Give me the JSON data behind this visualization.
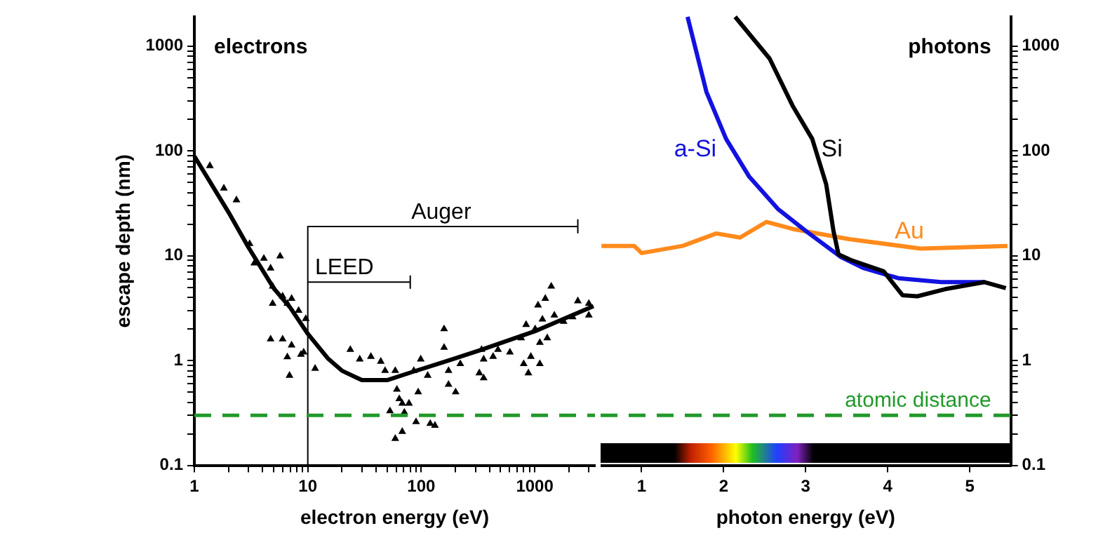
{
  "chart_data": [
    {
      "type": "scatter",
      "xlabel": "electron energy (eV)",
      "ylabel": "escape depth (nm)",
      "log": "xy",
      "grid": false,
      "legend": false,
      "xlim": [
        1,
        3400
      ],
      "ylim": [
        0.1,
        1900
      ],
      "xticks": [
        1,
        {
          "value": 2,
          "label": null
        },
        {
          "value": 3,
          "label": null
        },
        {
          "value": 4,
          "label": null
        },
        {
          "value": 5,
          "label": null
        },
        {
          "value": 6,
          "label": null
        },
        {
          "value": 7,
          "label": null
        },
        {
          "value": 8,
          "label": null
        },
        {
          "value": 9,
          "label": null
        },
        10,
        {
          "value": 20,
          "label": null
        },
        {
          "value": 30,
          "label": null
        },
        {
          "value": 40,
          "label": null
        },
        {
          "value": 50,
          "label": null
        },
        {
          "value": 60,
          "label": null
        },
        {
          "value": 70,
          "label": null
        },
        {
          "value": 80,
          "label": null
        },
        {
          "value": 90,
          "label": null
        },
        100,
        {
          "value": 200,
          "label": null
        },
        {
          "value": 300,
          "label": null
        },
        {
          "value": 400,
          "label": null
        },
        {
          "value": 500,
          "label": null
        },
        {
          "value": 600,
          "label": null
        },
        {
          "value": 700,
          "label": null
        },
        {
          "value": 800,
          "label": null
        },
        {
          "value": 900,
          "label": null
        },
        1000,
        {
          "value": 2000,
          "label": null
        },
        {
          "value": 3000,
          "label": null
        }
      ],
      "yticks": [
        0.1,
        {
          "value": 0.2,
          "label": null
        },
        {
          "value": 0.3,
          "label": null
        },
        {
          "value": 0.4,
          "label": null
        },
        {
          "value": 0.5,
          "label": null
        },
        {
          "value": 0.6,
          "label": null
        },
        {
          "value": 0.7,
          "label": null
        },
        {
          "value": 0.8,
          "label": null
        },
        {
          "value": 0.9,
          "label": null
        },
        1,
        {
          "value": 2,
          "label": null
        },
        {
          "value": 3,
          "label": null
        },
        {
          "value": 4,
          "label": null
        },
        {
          "value": 5,
          "label": null
        },
        {
          "value": 6,
          "label": null
        },
        {
          "value": 7,
          "label": null
        },
        {
          "value": 8,
          "label": null
        },
        {
          "value": 9,
          "label": null
        },
        10,
        {
          "value": 20,
          "label": null
        },
        {
          "value": 30,
          "label": null
        },
        {
          "value": 40,
          "label": null
        },
        {
          "value": 50,
          "label": null
        },
        {
          "value": 60,
          "label": null
        },
        {
          "value": 70,
          "label": null
        },
        {
          "value": 80,
          "label": null
        },
        {
          "value": 90,
          "label": null
        },
        100,
        {
          "value": 200,
          "label": null
        },
        {
          "value": 300,
          "label": null
        },
        {
          "value": 400,
          "label": null
        },
        {
          "value": 500,
          "label": null
        },
        {
          "value": 600,
          "label": null
        },
        {
          "value": 700,
          "label": null
        },
        {
          "value": 800,
          "label": null
        },
        {
          "value": 900,
          "label": null
        },
        1000
      ],
      "annotations": [
        "electrons",
        {
          "text": "Auger",
          "x": 150,
          "y": 19
        },
        {
          "text": "LEED",
          "x": 21,
          "y": 5.6
        }
      ],
      "ref_lines": [
        {
          "axis": "y",
          "value": 0.3,
          "color": "#22992a",
          "line_style": "dashed"
        }
      ],
      "series": [
        {
          "type": "scatter",
          "marker": "triangle",
          "color": "#000000",
          "x": [
            1.37,
            1.82,
            2.35,
            3.07,
            3.38,
            4.1,
            5.7,
            4.7,
            4.9,
            6.0,
            7.2,
            4.9,
            4.7,
            6.0,
            6.6,
            7.2,
            6.9,
            8.7,
            6.6,
            8.3,
            9.6,
            9.2,
            11.6,
            23.7,
            28.7,
            36,
            44,
            48,
            53,
            59,
            61,
            64,
            68,
            59,
            71,
            78,
            68,
            90,
            94,
            99,
            86,
            114,
            120,
            132,
            159,
            159,
            174,
            201,
            174,
            221,
            325,
            340,
            355,
            355,
            430,
            475,
            605,
            760,
            840,
            800,
            880,
            925,
            1010,
            1070,
            1110,
            1110,
            1240,
            1170,
            1400,
            1290,
            1490,
            1800,
            2160,
            2400,
            3000,
            3000
          ],
          "values": [
            72,
            44,
            34,
            13,
            8.5,
            9.4,
            9.9,
            7.6,
            5.1,
            4.1,
            3.9,
            3.5,
            1.6,
            1.6,
            1.08,
            1.4,
            0.72,
            1.14,
            3.5,
            3.0,
            2.5,
            1.2,
            0.84,
            1.27,
            1.03,
            1.09,
            0.98,
            0.8,
            0.33,
            0.8,
            0.53,
            0.43,
            0.39,
            0.18,
            0.32,
            0.39,
            0.21,
            0.26,
            0.5,
            1.03,
            0.8,
            0.72,
            0.25,
            0.24,
            2.0,
            1.33,
            0.59,
            0.5,
            0.8,
            0.93,
            0.76,
            1.27,
            1.03,
            0.68,
            1.09,
            1.27,
            1.2,
            1.64,
            2.2,
            0.93,
            0.76,
            1.09,
            2.0,
            3.37,
            1.48,
            0.93,
            3.9,
            2.47,
            5.1,
            1.64,
            2.7,
            2.35,
            2.6,
            3.7,
            3.5,
            2.7
          ]
        },
        {
          "type": "line",
          "color": "#000000",
          "x": [
            1,
            2,
            3,
            5,
            7,
            10,
            15,
            20,
            30,
            50,
            84,
            150,
            320,
            1000,
            3300
          ],
          "values": [
            89,
            26,
            12,
            4.9,
            3.2,
            1.8,
            1.05,
            0.8,
            0.65,
            0.65,
            0.78,
            0.95,
            1.24,
            1.9,
            3.3
          ]
        },
        {
          "type": "line",
          "color": "#000000",
          "x": [
            10,
            10,
            2400,
            2400,
            2400
          ],
          "values": [
            0.1,
            19,
            19,
            22,
            16.5
          ]
        },
        {
          "type": "line",
          "color": "#000000",
          "x": [
            10,
            80,
            80,
            80
          ],
          "values": [
            5.6,
            5.6,
            6.4,
            4.9
          ]
        }
      ]
    },
    {
      "type": "line",
      "xlabel": "photon energy (eV)",
      "log": "y",
      "grid": false,
      "legend": false,
      "xlim": [
        0.5,
        5.5
      ],
      "ylim": [
        0.1,
        1900
      ],
      "xticks": [
        1,
        2,
        3,
        4,
        5
      ],
      "yticks": [
        0.1,
        {
          "value": 0.2,
          "label": null
        },
        {
          "value": 0.3,
          "label": null
        },
        {
          "value": 0.4,
          "label": null
        },
        {
          "value": 0.5,
          "label": null
        },
        {
          "value": 0.6,
          "label": null
        },
        {
          "value": 0.7,
          "label": null
        },
        {
          "value": 0.8,
          "label": null
        },
        {
          "value": 0.9,
          "label": null
        },
        1,
        {
          "value": 2,
          "label": null
        },
        {
          "value": 3,
          "label": null
        },
        {
          "value": 4,
          "label": null
        },
        {
          "value": 5,
          "label": null
        },
        {
          "value": 6,
          "label": null
        },
        {
          "value": 7,
          "label": null
        },
        {
          "value": 8,
          "label": null
        },
        {
          "value": 9,
          "label": null
        },
        10,
        {
          "value": 20,
          "label": null
        },
        {
          "value": 30,
          "label": null
        },
        {
          "value": 40,
          "label": null
        },
        {
          "value": 50,
          "label": null
        },
        {
          "value": 60,
          "label": null
        },
        {
          "value": 70,
          "label": null
        },
        {
          "value": 80,
          "label": null
        },
        {
          "value": 90,
          "label": null
        },
        100,
        {
          "value": 200,
          "label": null
        },
        {
          "value": 300,
          "label": null
        },
        {
          "value": 400,
          "label": null
        },
        {
          "value": 500,
          "label": null
        },
        {
          "value": 600,
          "label": null
        },
        {
          "value": 700,
          "label": null
        },
        {
          "value": 800,
          "label": null
        },
        {
          "value": 900,
          "label": null
        },
        1000
      ],
      "annotations": [
        "photons"
      ],
      "ref_lines": [
        {
          "axis": "y",
          "value": 0.3,
          "label": "atomic distance",
          "color": "#22992a",
          "line_style": "dashed"
        }
      ],
      "series": [
        {
          "name": "Si",
          "color": "#000000",
          "x": [
            2.14,
            2.56,
            2.84,
            3.08,
            3.25,
            3.34,
            3.4,
            3.55,
            3.95,
            4.18,
            4.36,
            4.7,
            5.18,
            5.44
          ],
          "values": [
            1900,
            760,
            270,
            130,
            48,
            17,
            10.3,
            9.1,
            7.1,
            4.2,
            4.1,
            4.8,
            5.6,
            4.9
          ]
        },
        {
          "name": "a-Si",
          "color": "#1212e0",
          "x": [
            1.56,
            1.79,
            2.03,
            2.31,
            2.66,
            3.01,
            3.43,
            3.71,
            4.13,
            4.65,
            5.18
          ],
          "values": [
            1900,
            365,
            130,
            57,
            28,
            17,
            9.7,
            7.6,
            6.1,
            5.6,
            5.6
          ]
        },
        {
          "name": "Au",
          "color": "#ff8a1c",
          "x": [
            0.51,
            0.91,
            1.0,
            1.5,
            1.91,
            2.2,
            2.52,
            2.84,
            3.53,
            4.4,
            5.46
          ],
          "values": [
            12.4,
            12.4,
            10.6,
            12.4,
            16.3,
            14.9,
            21,
            18,
            14.4,
            11.7,
            12.4
          ]
        }
      ]
    }
  ]
}
